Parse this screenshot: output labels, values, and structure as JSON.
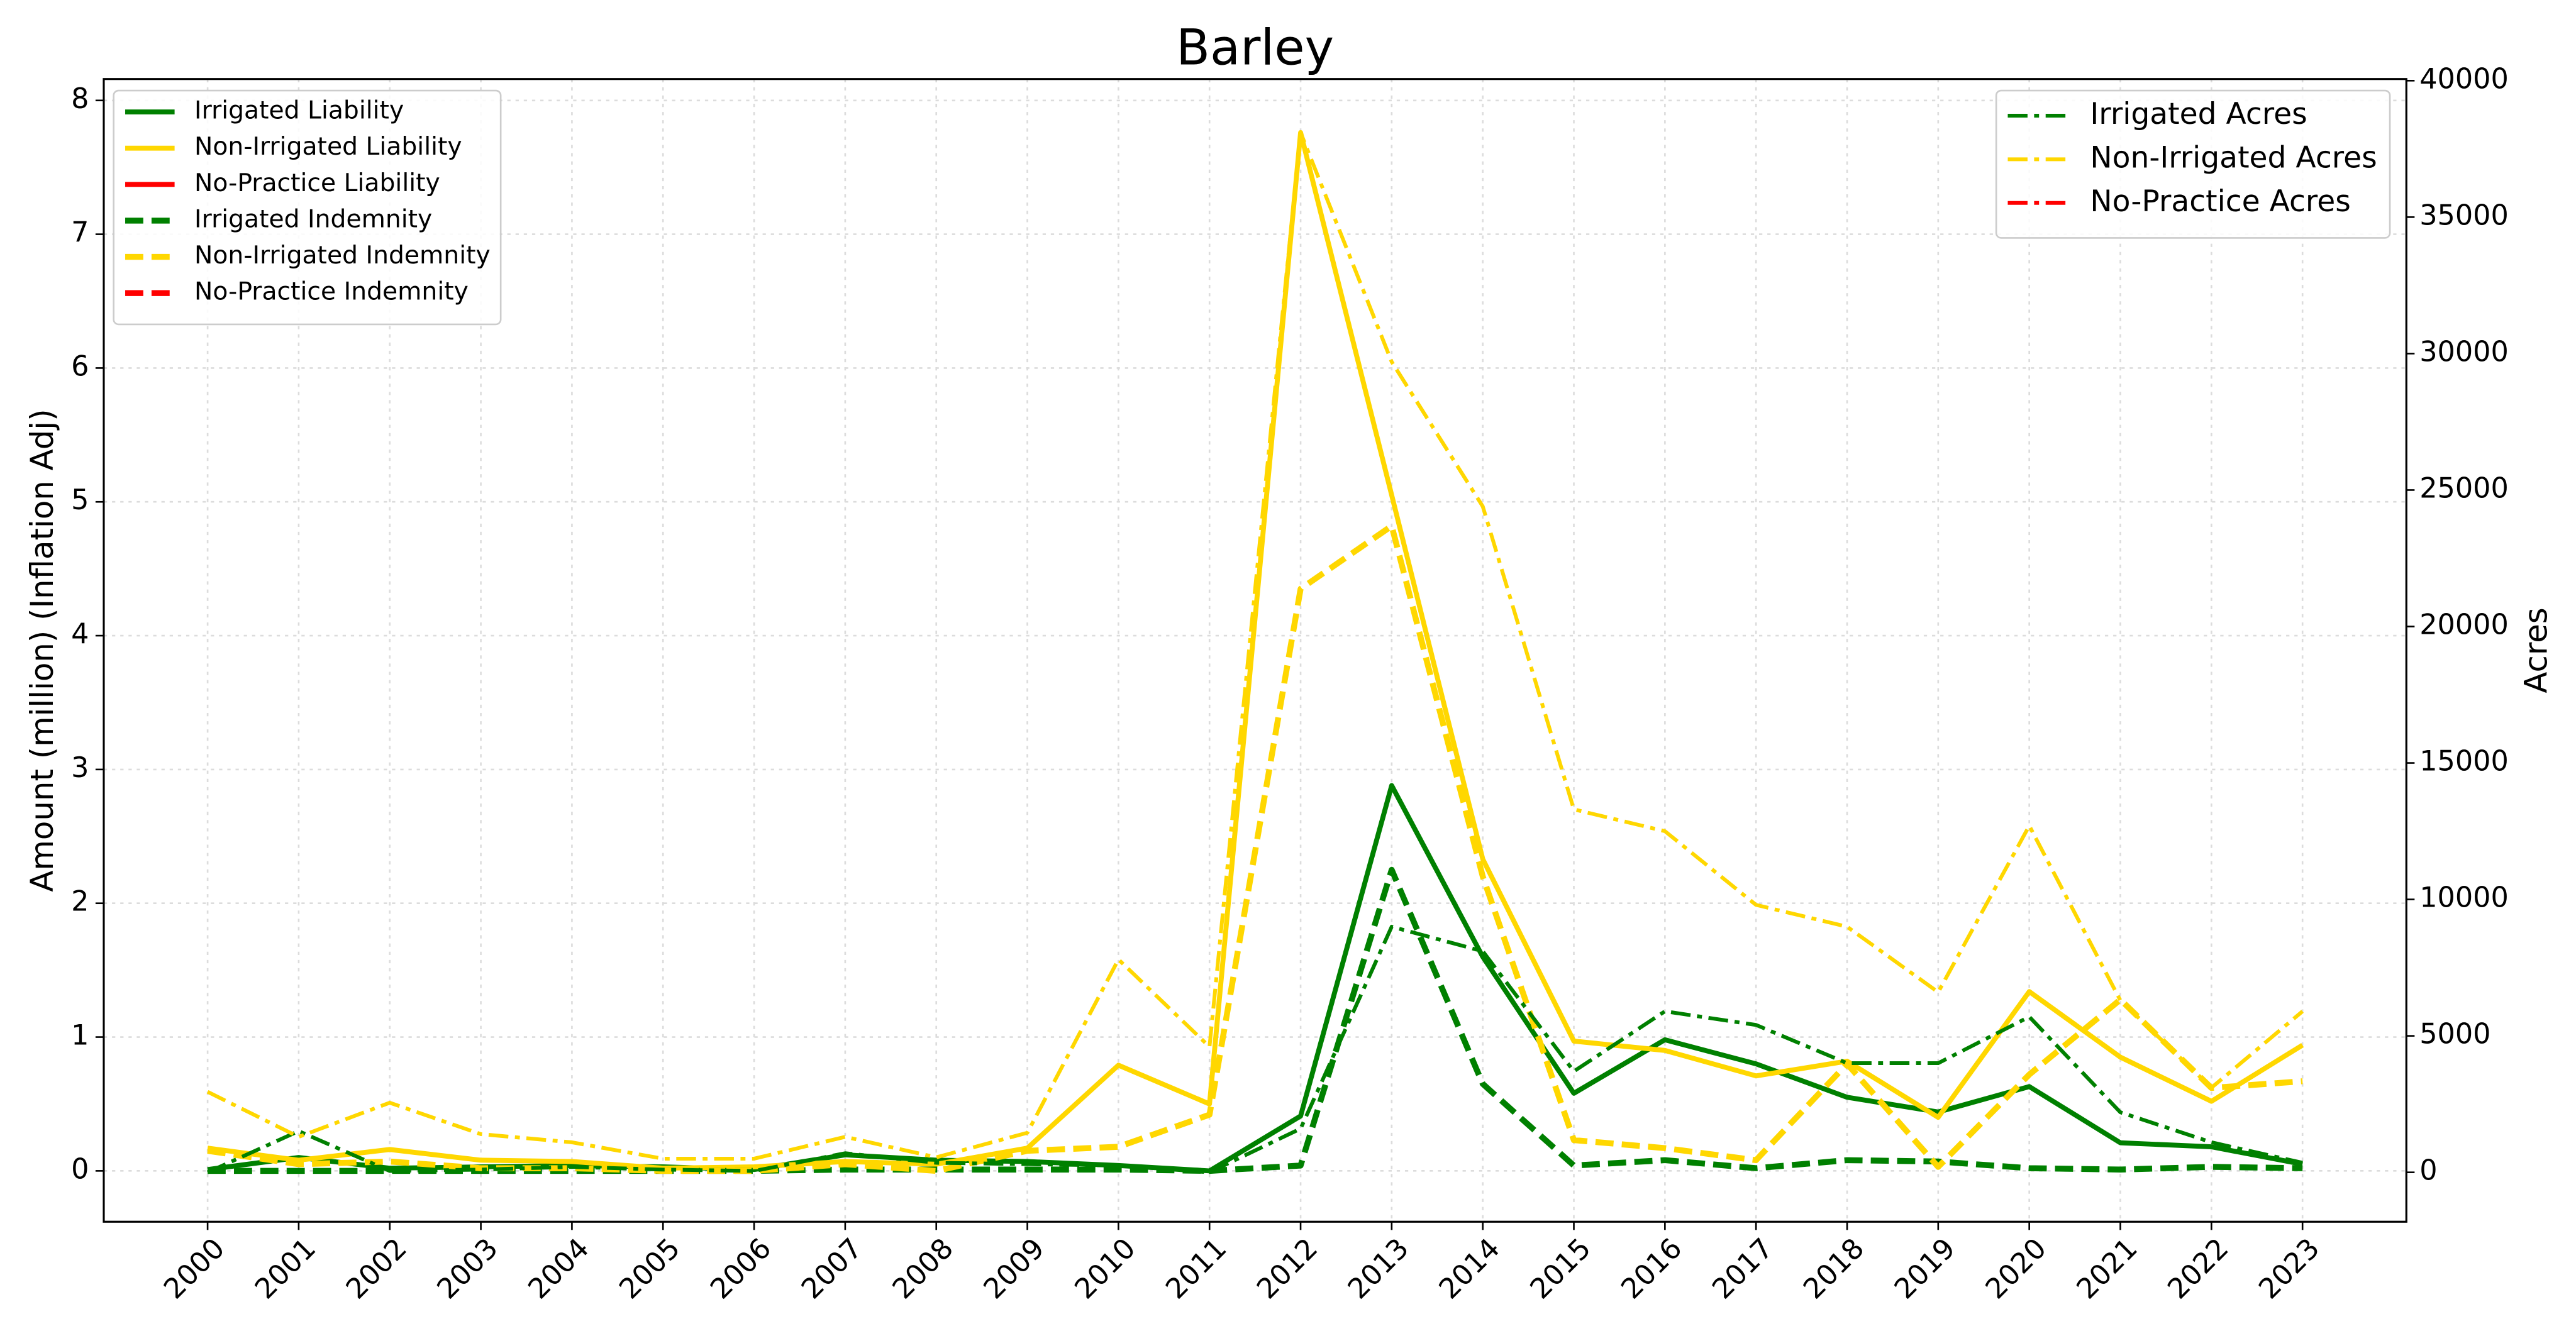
{
  "chart_data": {
    "type": "line",
    "title": "Barley",
    "ylabel": "Amount (million) (Inflation Adj)",
    "y2label": "Acres",
    "categories": [
      "2000",
      "2001",
      "2002",
      "2003",
      "2004",
      "2005",
      "2006",
      "2007",
      "2008",
      "2009",
      "2010",
      "2011",
      "2012",
      "2013",
      "2014",
      "2015",
      "2016",
      "2017",
      "2018",
      "2019",
      "2020",
      "2021",
      "2022",
      "2023"
    ],
    "series": [
      {
        "name": "Irrigated Liability",
        "color": "#008000",
        "linestyle": "solid",
        "values": [
          0.01,
          0.1,
          0.02,
          0.03,
          0.04,
          0.03,
          0.01,
          0.12,
          0.08,
          0.07,
          0.04,
          0.0,
          0.41,
          2.88,
          1.6,
          0.58,
          0.98,
          0.8,
          0.55,
          0.44,
          0.63,
          0.21,
          0.18,
          0.05
        ]
      },
      {
        "name": "Non-Irrigated Liability",
        "color": "#ffd700",
        "linestyle": "solid",
        "values": [
          0.17,
          0.08,
          0.16,
          0.08,
          0.07,
          0.02,
          0.03,
          0.07,
          0.05,
          0.17,
          0.79,
          0.5,
          7.76,
          5.05,
          2.33,
          0.97,
          0.9,
          0.71,
          0.82,
          0.4,
          1.34,
          0.85,
          0.52,
          0.94
        ]
      },
      {
        "name": "No-Practice Liability",
        "color": "#ff0000",
        "linestyle": "solid",
        "values": [
          null,
          null,
          null,
          null,
          null,
          null,
          null,
          null,
          null,
          null,
          null,
          null,
          null,
          null,
          null,
          null,
          null,
          null,
          null,
          null,
          null,
          null,
          null,
          null
        ]
      },
      {
        "name": "Irrigated Indemnity",
        "color": "#008000",
        "linestyle": "dashed",
        "values": [
          0.0,
          0.0,
          0.0,
          0.0,
          0.0,
          0.0,
          0.0,
          0.01,
          0.01,
          0.01,
          0.01,
          0.0,
          0.04,
          2.25,
          0.65,
          0.04,
          0.08,
          0.02,
          0.08,
          0.07,
          0.02,
          0.01,
          0.03,
          0.02
        ]
      },
      {
        "name": "Non-Irrigated Indemnity",
        "color": "#ffd700",
        "linestyle": "dashed",
        "values": [
          0.15,
          0.05,
          0.07,
          0.02,
          0.02,
          0.0,
          0.0,
          0.05,
          0.0,
          0.15,
          0.18,
          0.42,
          4.35,
          4.82,
          2.2,
          0.23,
          0.17,
          0.08,
          0.8,
          0.03,
          0.72,
          1.28,
          0.62,
          0.67
        ]
      },
      {
        "name": "No-Practice Indemnity",
        "color": "#ff0000",
        "linestyle": "dashed",
        "values": [
          null,
          null,
          null,
          null,
          null,
          null,
          null,
          null,
          null,
          null,
          null,
          null,
          null,
          null,
          null,
          null,
          null,
          null,
          null,
          null,
          null,
          null,
          null,
          null
        ]
      },
      {
        "name": "Irrigated Acres",
        "color": "#008000",
        "linestyle": "dashdot",
        "axis": "y2",
        "values": [
          0,
          1510,
          50,
          100,
          200,
          100,
          50,
          700,
          350,
          300,
          250,
          0,
          1600,
          9000,
          8100,
          3700,
          5900,
          5400,
          4000,
          4000,
          5700,
          2200,
          1100,
          350
        ]
      },
      {
        "name": "Non-Irrigated Acres",
        "color": "#ffd700",
        "linestyle": "dashdot",
        "axis": "y2",
        "values": [
          2950,
          1300,
          2550,
          1400,
          1100,
          500,
          500,
          1300,
          550,
          1450,
          7800,
          4600,
          38100,
          29700,
          24400,
          13300,
          12500,
          9800,
          9000,
          6600,
          12700,
          6300,
          3100,
          5900
        ]
      },
      {
        "name": "No-Practice Acres",
        "color": "#ff0000",
        "linestyle": "dashdot",
        "axis": "y2",
        "values": [
          null,
          null,
          null,
          null,
          null,
          null,
          null,
          null,
          null,
          null,
          null,
          null,
          null,
          null,
          null,
          null,
          null,
          null,
          null,
          null,
          null,
          null,
          null,
          null
        ]
      }
    ],
    "ylim": [
      -0.38,
      8.16
    ],
    "yticks": [
      0,
      1,
      2,
      3,
      4,
      5,
      6,
      7,
      8
    ],
    "y2lim": [
      -1810,
      40060
    ],
    "y2ticks": [
      0,
      5000,
      10000,
      15000,
      20000,
      25000,
      30000,
      35000,
      40000
    ],
    "grid": true,
    "legend": "upper left",
    "legend2": "upper right"
  }
}
